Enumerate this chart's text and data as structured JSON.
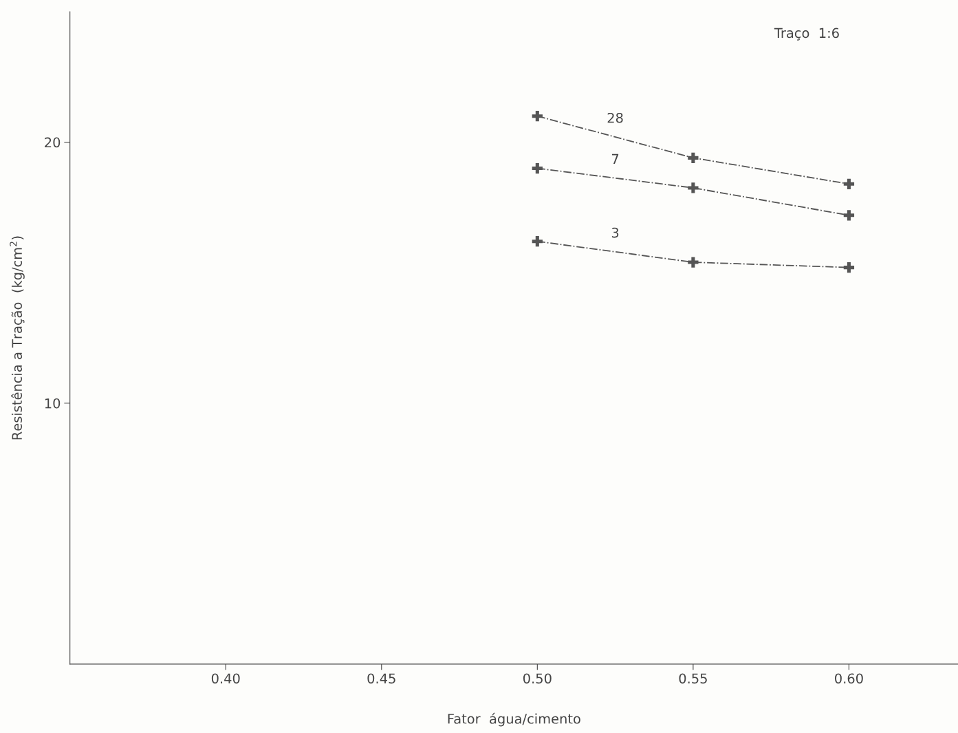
{
  "chart_data": {
    "type": "line",
    "xlabel": "Fator  água/cimento",
    "ylabel": "Resistência a Tração  (kg/cm$^{2}$)",
    "annotations": [
      "Traço  1:6"
    ],
    "x": [
      0.5,
      0.55,
      0.6
    ],
    "series": [
      {
        "name": "28",
        "color": "#555555",
        "values": [
          21.0,
          19.4,
          18.4
        ]
      },
      {
        "name": "7",
        "color": "#555555",
        "values": [
          19.0,
          18.25,
          17.2
        ]
      },
      {
        "name": "3",
        "color": "#555555",
        "values": [
          16.2,
          15.4,
          15.2
        ]
      }
    ],
    "xlim": [
      0.35,
      0.635
    ],
    "ylim": [
      0,
      25
    ],
    "xticks": [
      {
        "value": 0.4,
        "label": "0.40"
      },
      {
        "value": 0.45,
        "label": "0.45"
      },
      {
        "value": 0.5,
        "label": "0.50"
      },
      {
        "value": 0.55,
        "label": "0.55"
      },
      {
        "value": 0.6,
        "label": "0.60"
      }
    ],
    "yticks": [
      10,
      20
    ],
    "marker": "cross",
    "line_style": "dashdot",
    "grid": false,
    "legend": false
  }
}
